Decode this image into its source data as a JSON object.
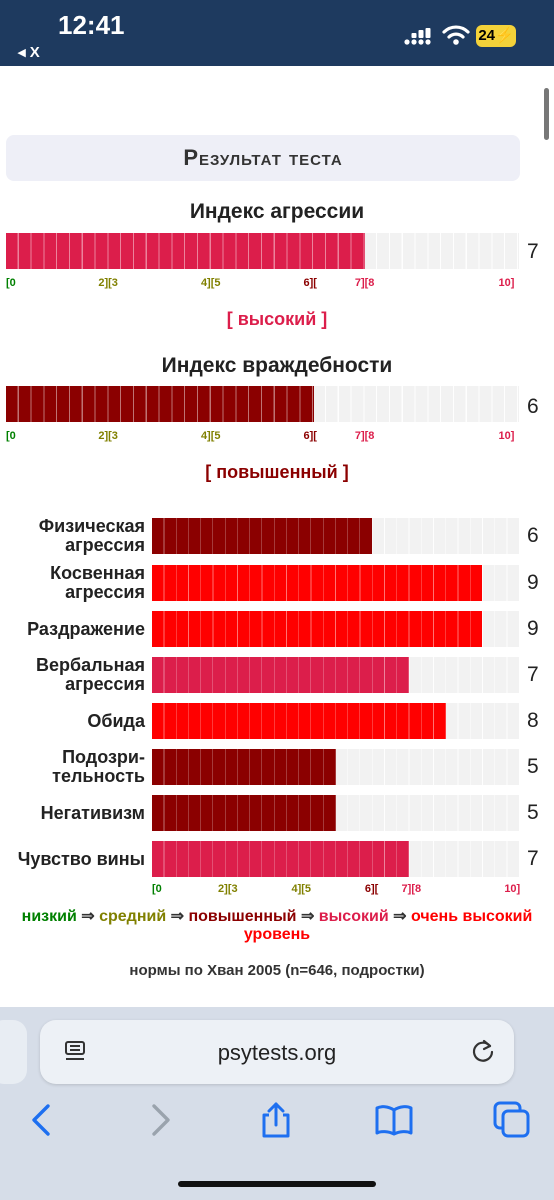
{
  "status": {
    "time": "12:41",
    "back_app": "◂ X",
    "battery": "24"
  },
  "header": "Результат теста",
  "aggression": {
    "title": "Индекс агрессии",
    "value": "7",
    "level": "[ высокий ]",
    "fill_fraction": 0.7,
    "color": "#dc1e4b"
  },
  "hostility": {
    "title": "Индекс враждебности",
    "value": "6",
    "level": "[ повышенный ]",
    "fill_fraction": 0.6,
    "color": "#8b0000"
  },
  "scale_labels": [
    {
      "text": "[0",
      "color": "#008000"
    },
    {
      "text": "2][3",
      "color": "#808000"
    },
    {
      "text": "4][5",
      "color": "#808000"
    },
    {
      "text": "6][",
      "color": "#8b0000"
    },
    {
      "text": "7][8",
      "color": "#dc1e4b"
    },
    {
      "text": "10]",
      "color": "#dc1e4b"
    }
  ],
  "sub_scales": [
    {
      "label": "Физическая агрессия",
      "value": "6",
      "fill_fraction": 0.6,
      "color": "#8b0000"
    },
    {
      "label": "Косвенная агрессия",
      "value": "9",
      "fill_fraction": 0.9,
      "color": "#ff0000"
    },
    {
      "label": "Раздражение",
      "value": "9",
      "fill_fraction": 0.9,
      "color": "#ff0000"
    },
    {
      "label": "Вербальная агрессия",
      "value": "7",
      "fill_fraction": 0.7,
      "color": "#dc1e4b"
    },
    {
      "label": "Обида",
      "value": "8",
      "fill_fraction": 0.8,
      "color": "#ff0000"
    },
    {
      "label": "Подозри-тельность",
      "value": "5",
      "fill_fraction": 0.5,
      "color": "#8b0000"
    },
    {
      "label": "Негативизм",
      "value": "5",
      "fill_fraction": 0.5,
      "color": "#8b0000"
    },
    {
      "label": "Чувство вины",
      "value": "7",
      "fill_fraction": 0.7,
      "color": "#dc1e4b"
    }
  ],
  "legend": {
    "low": "низкий",
    "medium": "средний",
    "elevated": "повышенный",
    "high": "высокий",
    "very_high": "очень высокий уровень",
    "arrow": "⇒"
  },
  "norms": "нормы по Хван 2005 (n=646, подростки)",
  "browser": {
    "url": "psytests.org"
  }
}
